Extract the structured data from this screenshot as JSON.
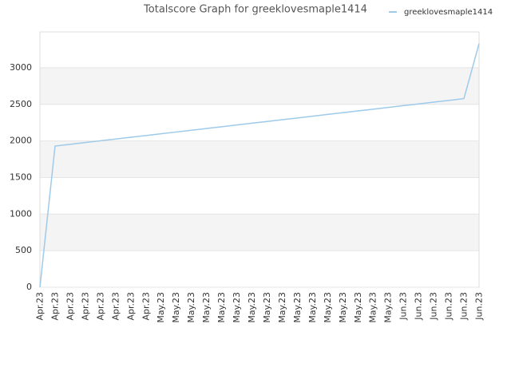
{
  "chart_data": {
    "type": "line",
    "title": "Totalscore Graph for greeklovesmaple1414",
    "categories": [
      "Apr.23",
      "Apr.23",
      "Apr.23",
      "Apr.23",
      "Apr.23",
      "Apr.23",
      "Apr.23",
      "Apr.23",
      "May.23",
      "May.23",
      "May.23",
      "May.23",
      "May.23",
      "May.23",
      "May.23",
      "May.23",
      "May.23",
      "May.23",
      "May.23",
      "May.23",
      "May.23",
      "May.23",
      "May.23",
      "May.23",
      "Jun.23",
      "Jun.23",
      "Jun.23",
      "Jun.23",
      "Jun.23",
      "Jun.23"
    ],
    "series": [
      {
        "name": "greeklovesmaple1414",
        "color": "#9ecae9",
        "values": [
          0,
          1930,
          1954,
          1978,
          2002,
          2026,
          2050,
          2074,
          2098,
          2122,
          2146,
          2170,
          2194,
          2218,
          2242,
          2266,
          2290,
          2314,
          2338,
          2362,
          2386,
          2410,
          2434,
          2458,
          2482,
          2506,
          2530,
          2554,
          2578,
          3330
        ]
      }
    ],
    "ylim": [
      0,
      3490
    ],
    "yticks": [
      0,
      500,
      1000,
      1500,
      2000,
      2500,
      3000
    ],
    "grid": true,
    "legend": "top-right"
  }
}
